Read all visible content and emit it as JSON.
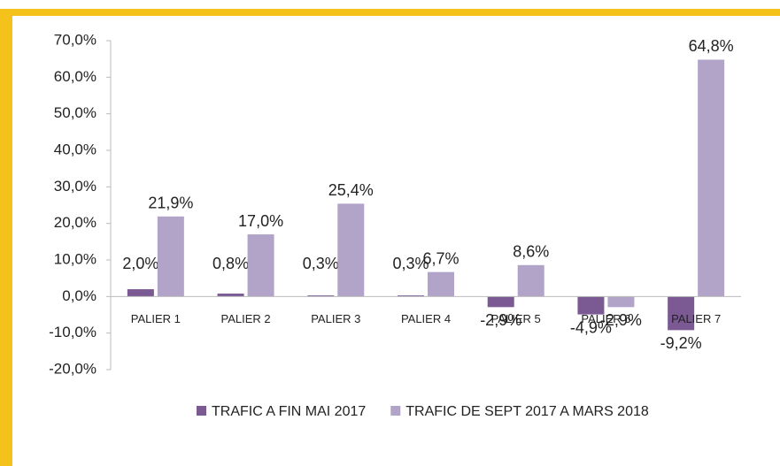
{
  "chart_data": {
    "type": "bar",
    "categories": [
      "PALIER 1",
      "PALIER 2",
      "PALIER 3",
      "PALIER 4",
      "PALIER 5",
      "PALIER 6",
      "PALIER 7"
    ],
    "series": [
      {
        "name": "TRAFIC A FIN MAI 2017",
        "color": "#7b5a94",
        "values": [
          2.0,
          0.8,
          0.3,
          0.3,
          -2.9,
          -4.9,
          -9.2
        ],
        "value_labels": [
          "2,0%",
          "0,8%",
          "0,3%",
          "0,3%",
          "-2,9%",
          "-4,9%",
          "-9,2%"
        ]
      },
      {
        "name": "TRAFIC DE SEPT 2017 A MARS 2018",
        "color": "#b2a3c8",
        "values": [
          21.9,
          17.0,
          25.4,
          6.7,
          8.6,
          -2.9,
          64.8
        ],
        "value_labels": [
          "21,9%",
          "17,0%",
          "25,4%",
          "6,7%",
          "8,6%",
          "-2,9%",
          "64,8%"
        ]
      }
    ],
    "ylim": [
      -20,
      70
    ],
    "yticks": [
      {
        "value": 70,
        "label": "70,0%"
      },
      {
        "value": 60,
        "label": "60,0%"
      },
      {
        "value": 50,
        "label": "50,0%"
      },
      {
        "value": 40,
        "label": "40,0%"
      },
      {
        "value": 30,
        "label": "30,0%"
      },
      {
        "value": 20,
        "label": "20,0%"
      },
      {
        "value": 10,
        "label": "10,0%"
      },
      {
        "value": 0,
        "label": "0,0%"
      },
      {
        "value": -10,
        "label": "-10,0%"
      },
      {
        "value": -20,
        "label": "-20,0%"
      }
    ],
    "legend": "bottom"
  }
}
